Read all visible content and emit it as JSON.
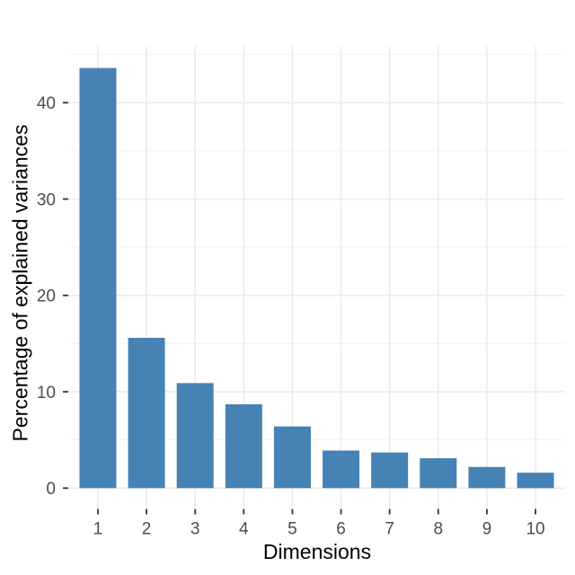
{
  "figure": {
    "background_color": "#FFFFFF"
  },
  "chart_data": {
    "type": "bar",
    "title": "",
    "xlabel": "Dimensions",
    "ylabel": "Percentage of explained variances",
    "categories": [
      "1",
      "2",
      "3",
      "4",
      "5",
      "6",
      "7",
      "8",
      "9",
      "10"
    ],
    "values": [
      43.6,
      15.6,
      10.9,
      8.7,
      6.4,
      3.9,
      3.7,
      3.1,
      2.2,
      1.6
    ],
    "ylim": [
      -2.1,
      45.9
    ],
    "yticks": [
      0,
      10,
      20,
      30,
      40
    ],
    "yticks_minor": [
      5,
      15,
      25,
      35,
      45
    ],
    "grid": "on",
    "legend": "none",
    "bar_color": "#4682B4",
    "grid_major_color": "#EBEBEB",
    "grid_minor_color": "#F3F3F3",
    "tick_mark_color": "#333333",
    "tick_label_color": "#4D4D4D",
    "axis_title_color": "#000000"
  }
}
